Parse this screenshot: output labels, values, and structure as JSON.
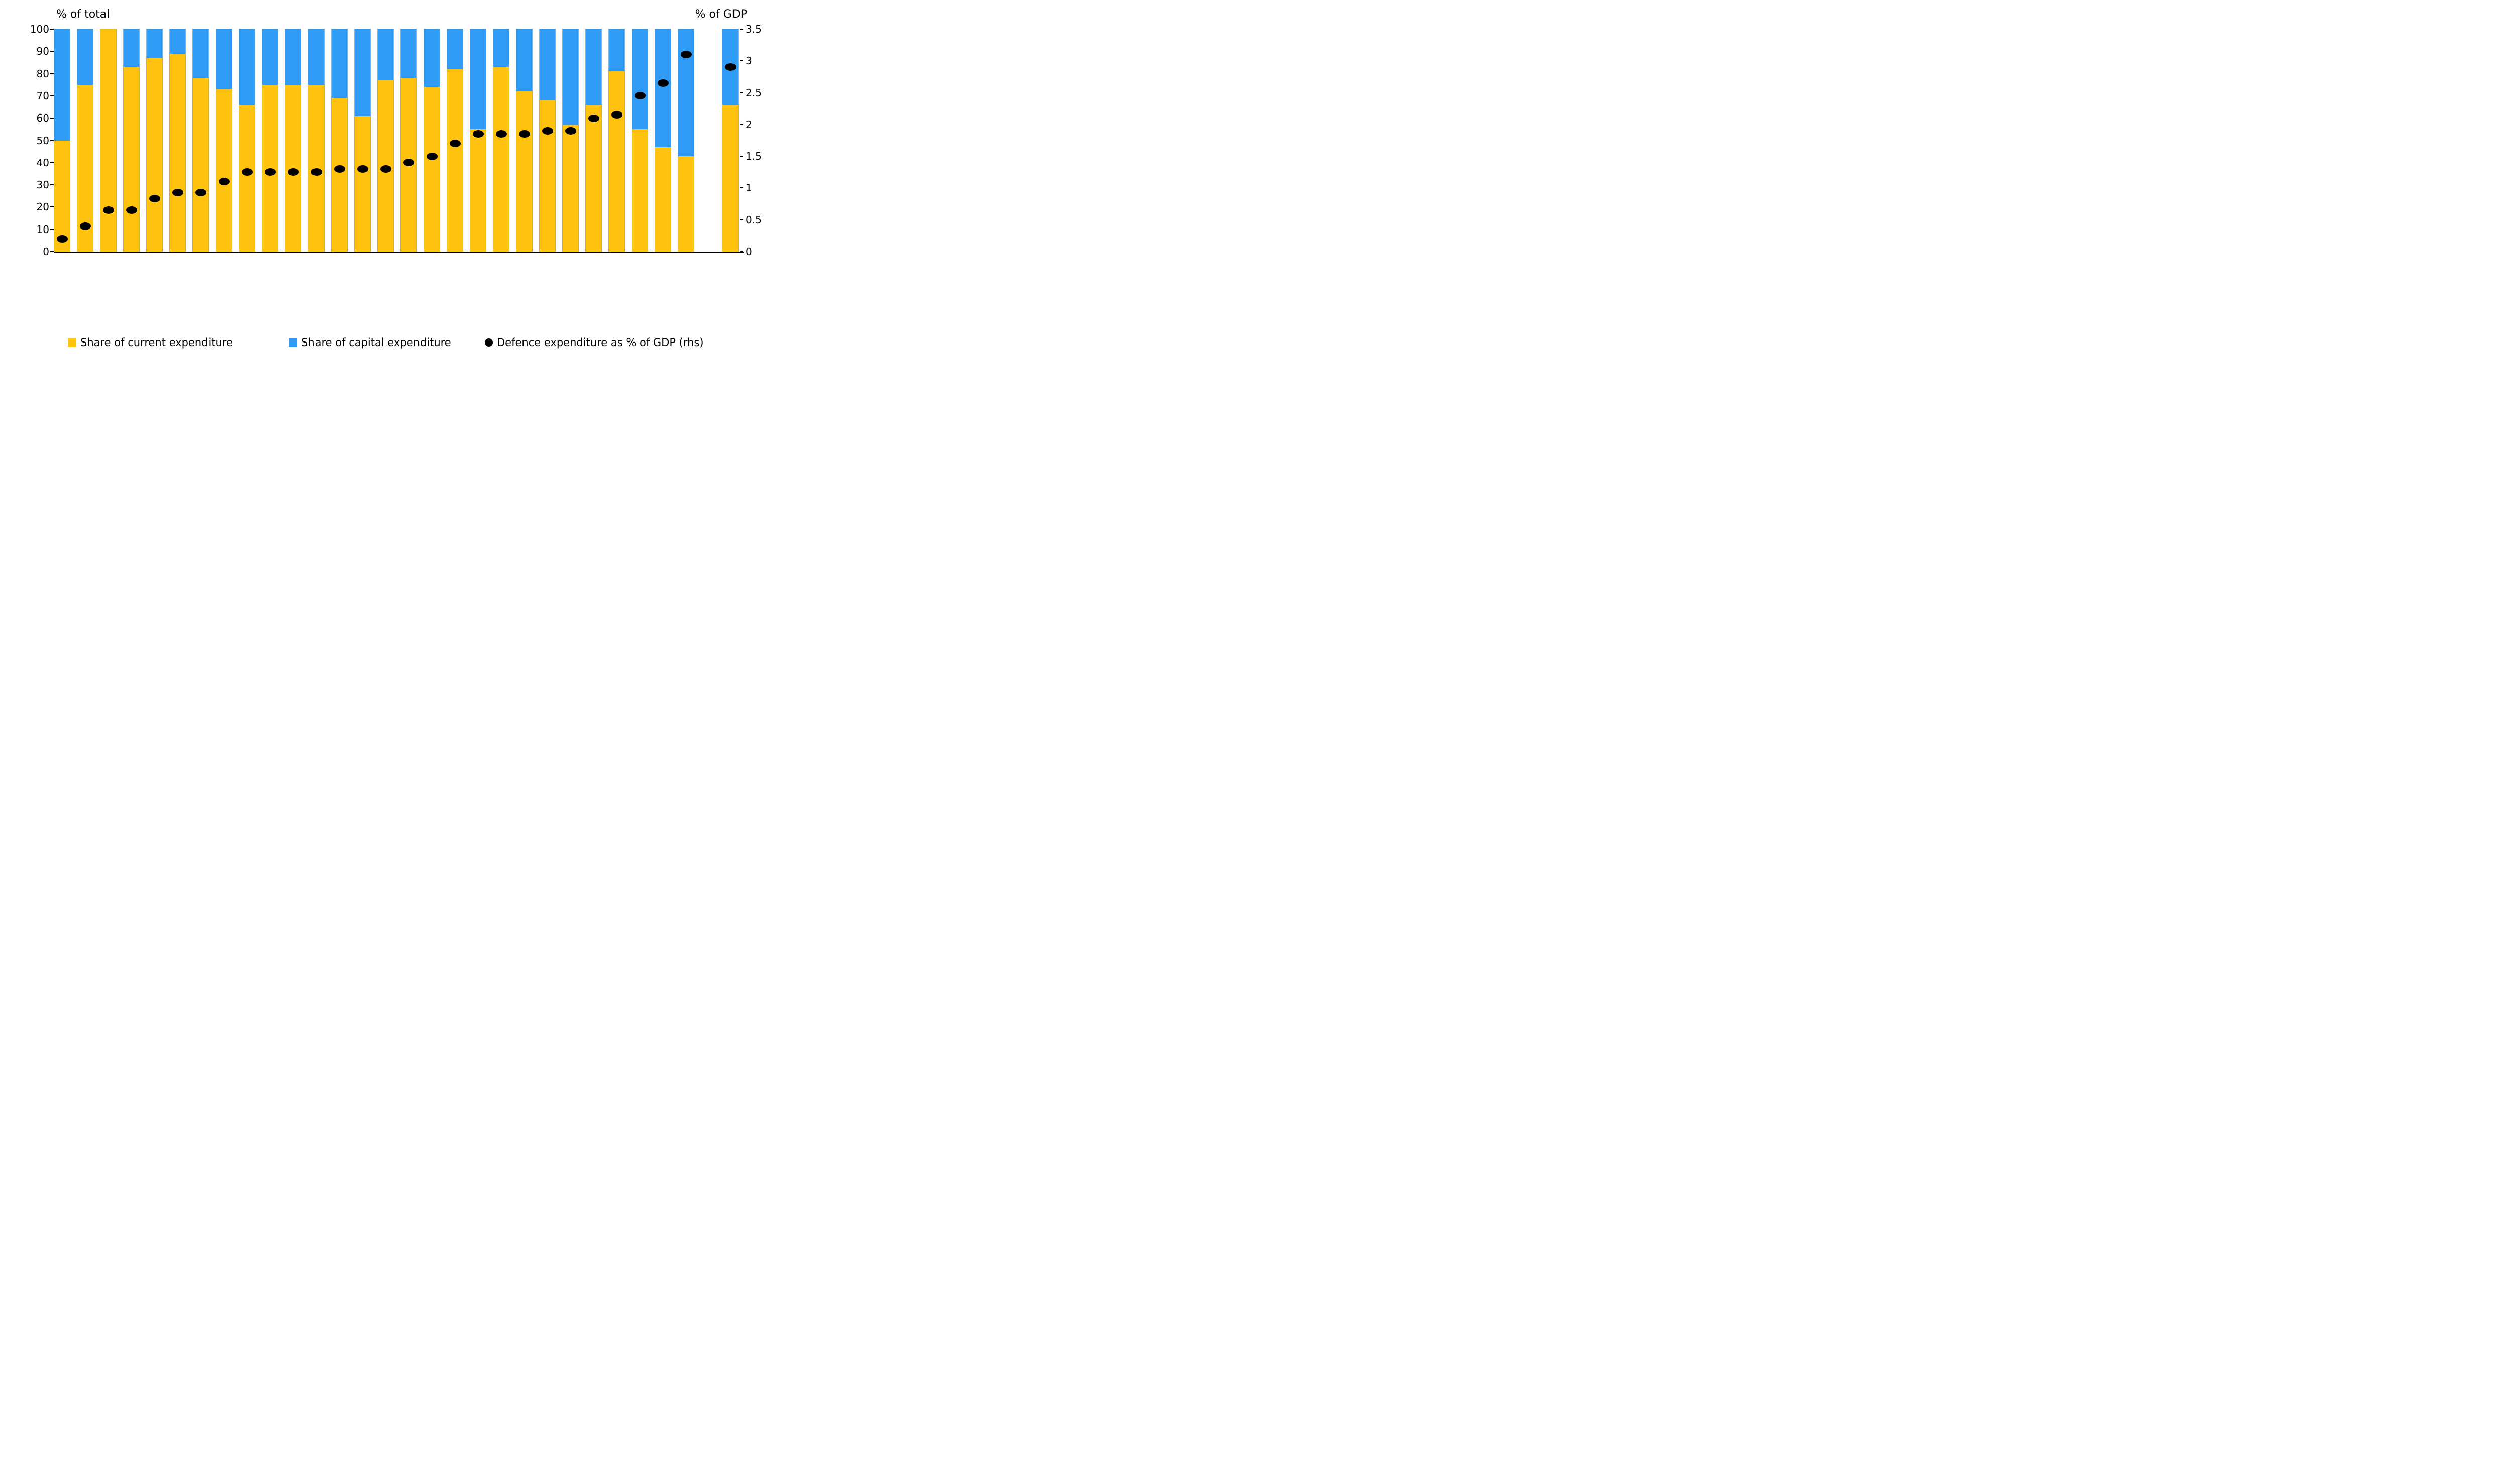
{
  "titles": {
    "left_axis": "% of total",
    "right_axis": "% of GDP"
  },
  "left_axis": {
    "ticks": [
      100,
      90,
      80,
      70,
      60,
      50,
      40,
      30,
      20,
      10,
      0
    ]
  },
  "right_axis": {
    "ticks": [
      3.5,
      3,
      2.5,
      2,
      1.5,
      1,
      0.5,
      0
    ]
  },
  "colors": {
    "current_expenditure": "#FFC20E",
    "capital_expenditure": "#2F9BF4",
    "gdp_dot": "#000000",
    "bar_edge": "#ababab",
    "background": "#ffffff"
  },
  "legend": [
    {
      "marker": "square",
      "color": "#FFC20E",
      "label": "Share of current expenditure"
    },
    {
      "marker": "square",
      "color": "#2F9BF4",
      "label": "Share of capital expenditure"
    },
    {
      "marker": "circle",
      "color": "#000000",
      "label": "Defence expenditure as % of GDP (rhs)"
    }
  ],
  "chart_data": {
    "type": "bar",
    "subtype": "stacked-percent-with-dot-overlay",
    "left_ylim": [
      0,
      100
    ],
    "right_ylim": [
      0,
      3.5
    ],
    "grid": false,
    "x_labels_visible": false,
    "series_names": [
      "Share of current expenditure",
      "Share of capital expenditure",
      "Defence expenditure as % of GDP (rhs)"
    ],
    "bars": [
      {
        "current": 50,
        "capital": 50,
        "gdp": 0.2
      },
      {
        "current": 75,
        "capital": 25,
        "gdp": 0.4
      },
      {
        "current": 100,
        "capital": 0,
        "gdp": 0.65
      },
      {
        "current": 83,
        "capital": 17,
        "gdp": 0.65
      },
      {
        "current": 87,
        "capital": 13,
        "gdp": 0.83
      },
      {
        "current": 89,
        "capital": 11,
        "gdp": 0.93
      },
      {
        "current": 78,
        "capital": 22,
        "gdp": 0.93
      },
      {
        "current": 73,
        "capital": 27,
        "gdp": 1.1
      },
      {
        "current": 66,
        "capital": 34,
        "gdp": 1.25
      },
      {
        "current": 75,
        "capital": 25,
        "gdp": 1.25
      },
      {
        "current": 75,
        "capital": 25,
        "gdp": 1.25
      },
      {
        "current": 75,
        "capital": 25,
        "gdp": 1.25
      },
      {
        "current": 69,
        "capital": 31,
        "gdp": 1.3
      },
      {
        "current": 61,
        "capital": 39,
        "gdp": 1.3
      },
      {
        "current": 77,
        "capital": 23,
        "gdp": 1.3
      },
      {
        "current": 78,
        "capital": 22,
        "gdp": 1.4
      },
      {
        "current": 74,
        "capital": 26,
        "gdp": 1.5
      },
      {
        "current": 82,
        "capital": 18,
        "gdp": 1.7
      },
      {
        "current": 55,
        "capital": 45,
        "gdp": 1.85
      },
      {
        "current": 83,
        "capital": 17,
        "gdp": 1.85
      },
      {
        "current": 72,
        "capital": 28,
        "gdp": 1.85
      },
      {
        "current": 68,
        "capital": 32,
        "gdp": 1.9
      },
      {
        "current": 57,
        "capital": 43,
        "gdp": 1.9
      },
      {
        "current": 66,
        "capital": 34,
        "gdp": 2.1
      },
      {
        "current": 81,
        "capital": 19,
        "gdp": 2.15
      },
      {
        "current": 55,
        "capital": 45,
        "gdp": 2.45
      },
      {
        "current": 47,
        "capital": 53,
        "gdp": 2.65
      },
      {
        "current": 43,
        "capital": 57,
        "gdp": 3.1
      }
    ],
    "separated_bar": {
      "current": 66,
      "capital": 34,
      "gdp": 2.9
    }
  }
}
